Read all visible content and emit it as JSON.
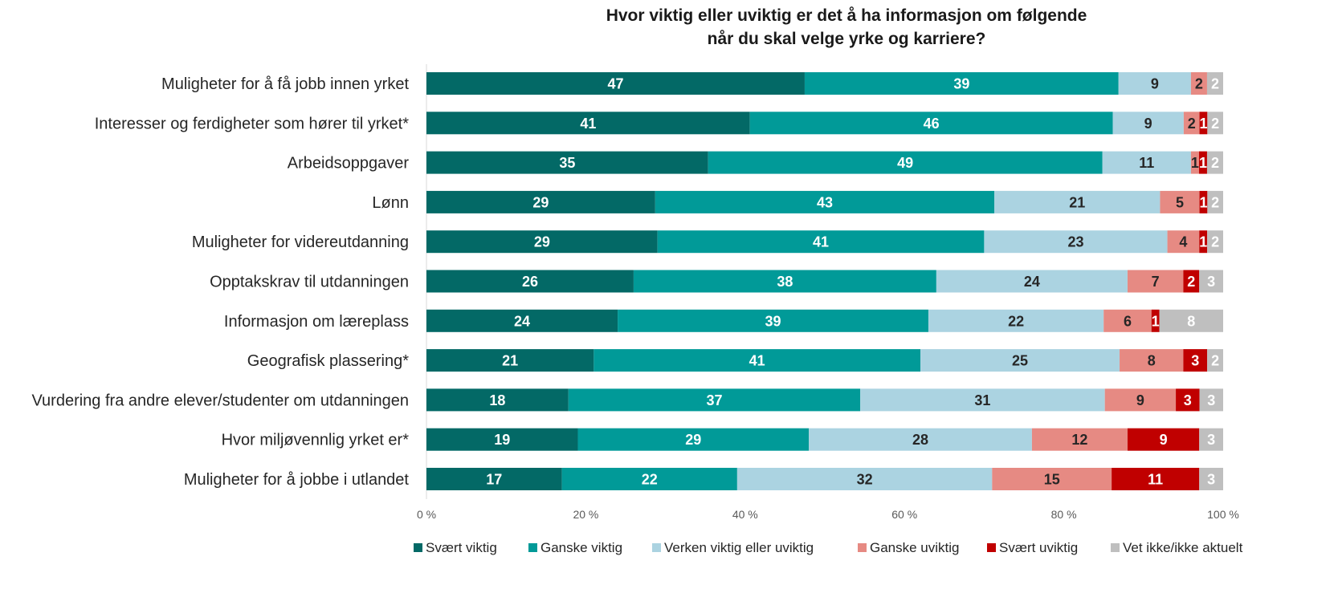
{
  "chart_data": {
    "type": "bar",
    "orientation": "horizontal",
    "stacked": true,
    "title": "Hvor viktig eller uviktig er det å ha informasjon om følgende når du skal velge yrke og karriere?",
    "title_lines": [
      "Hvor viktig eller uviktig er det å ha informasjon om følgende",
      "når du skal velge yrke og karriere?"
    ],
    "xlabel": "",
    "ylabel": "",
    "xlim": [
      0,
      100
    ],
    "x_ticks": [
      "0 %",
      "20 %",
      "40 %",
      "60 %",
      "80 %",
      "100 %"
    ],
    "grid": false,
    "legend_position": "bottom",
    "categories": [
      "Muligheter for å få jobb innen yrket",
      "Interesser og ferdigheter som hører til yrket*",
      "Arbeidsoppgaver",
      "Lønn",
      "Muligheter for videreutdanning",
      "Opptakskrav til utdanningen",
      "Informasjon om læreplass",
      "Geografisk plassering*",
      "Vurdering fra andre elever/studenter om utdanningen",
      "Hvor miljøvennlig yrket er*",
      "Muligheter for å jobbe i utlandet"
    ],
    "series": [
      {
        "name": "Svært viktig",
        "color": "#036966",
        "label_color": "#ffffff",
        "values": [
          47,
          41,
          35,
          29,
          29,
          26,
          24,
          21,
          18,
          19,
          17
        ]
      },
      {
        "name": "Ganske viktig",
        "color": "#019a98",
        "label_color": "#ffffff",
        "values": [
          39,
          46,
          49,
          43,
          41,
          38,
          39,
          41,
          37,
          29,
          22
        ]
      },
      {
        "name": "Verken viktig eller uviktig",
        "color": "#abd3e1",
        "label_color": "#262626",
        "values": [
          9,
          9,
          11,
          21,
          23,
          24,
          22,
          25,
          31,
          28,
          32
        ]
      },
      {
        "name": "Ganske uviktig",
        "color": "#e68a83",
        "label_color": "#262626",
        "values": [
          2,
          2,
          1,
          5,
          4,
          7,
          6,
          8,
          9,
          12,
          15
        ]
      },
      {
        "name": "Svært uviktig",
        "color": "#c00000",
        "label_color": "#ffffff",
        "values": [
          0,
          1,
          1,
          1,
          1,
          2,
          1,
          3,
          3,
          9,
          11
        ]
      },
      {
        "name": "Vet ikke/ikke aktuelt",
        "color": "#bfbfbf",
        "label_color": "#ffffff",
        "values": [
          2,
          2,
          2,
          2,
          2,
          3,
          8,
          2,
          3,
          3,
          3
        ]
      }
    ],
    "data_labels": [
      [
        "47",
        "39",
        "9",
        "2",
        "",
        "2"
      ],
      [
        "41",
        "46",
        "9",
        "2",
        "1",
        "2"
      ],
      [
        "35",
        "49",
        "11",
        "1",
        "1",
        "2"
      ],
      [
        "29",
        "43",
        "21",
        "5",
        "1",
        "2"
      ],
      [
        "29",
        "41",
        "23",
        "4",
        "1",
        "2"
      ],
      [
        "26",
        "38",
        "24",
        "7",
        "2",
        "3"
      ],
      [
        "24",
        "39",
        "22",
        "6",
        "1",
        "8"
      ],
      [
        "21",
        "41",
        "25",
        "8",
        "3",
        "2"
      ],
      [
        "18",
        "37",
        "31",
        "9",
        "3",
        "3"
      ],
      [
        "19",
        "29",
        "28",
        "12",
        "9",
        "3"
      ],
      [
        "17",
        "22",
        "32",
        "15",
        "11",
        "3"
      ]
    ]
  }
}
